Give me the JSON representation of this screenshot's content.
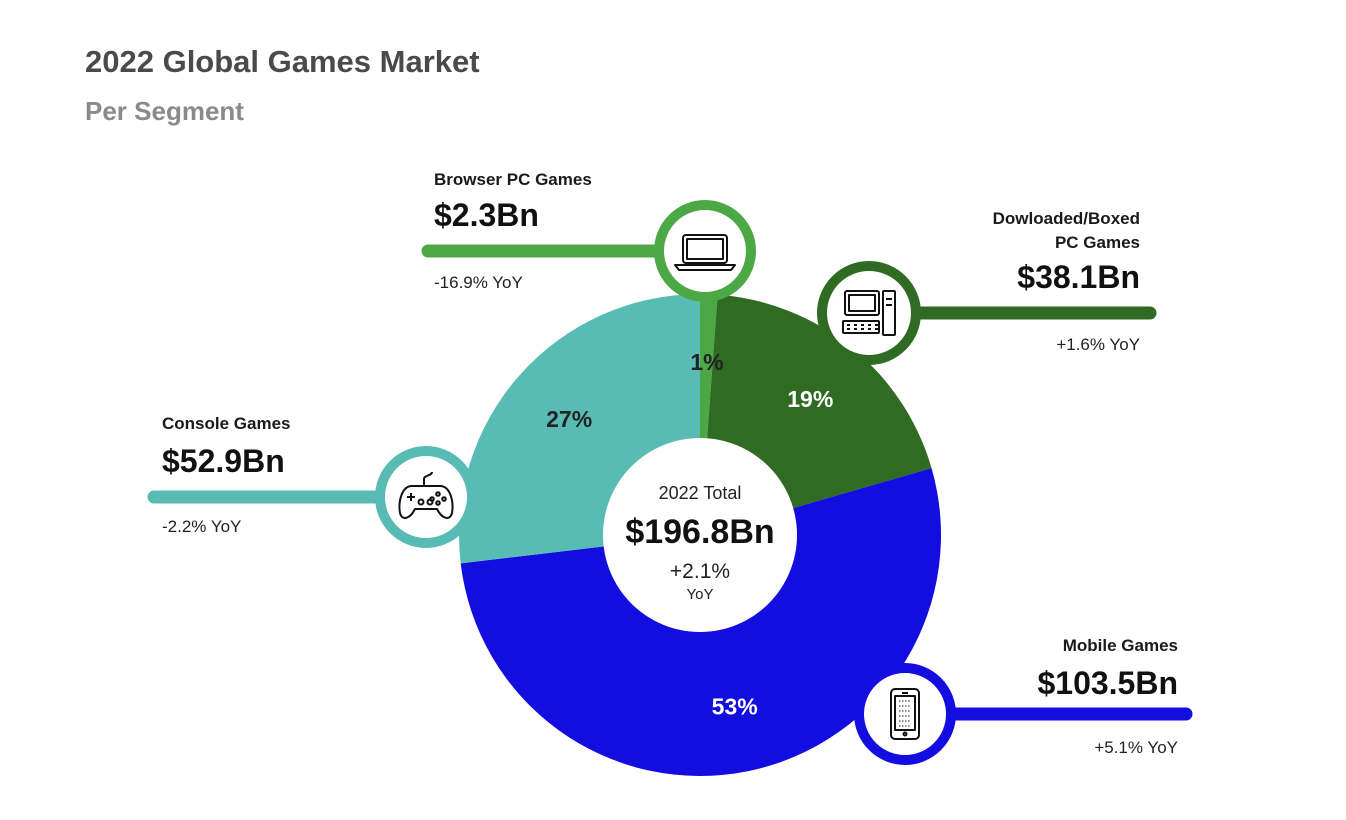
{
  "title": "2022 Global Games Market",
  "subtitle": "Per Segment",
  "center": {
    "label": "2022 Total",
    "value": "$196.8Bn",
    "yoy": "+2.1%",
    "yoy_unit": "YoY"
  },
  "chart_data": {
    "type": "pie",
    "title": "2022 Global Games Market",
    "subtitle": "Per Segment",
    "slices": [
      {
        "key": "browser",
        "title_lines": [
          "Browser PC Games"
        ],
        "value": 2.3,
        "value_label": "$2.3Bn",
        "pct": "1%",
        "yoy": "-16.9% YoY",
        "color": "#4ba845",
        "icon": "laptop-icon"
      },
      {
        "key": "downloaded",
        "title_lines": [
          "Dowloaded/Boxed",
          "PC Games"
        ],
        "value": 38.1,
        "value_label": "$38.1Bn",
        "pct": "19%",
        "yoy": "+1.6% YoY",
        "color": "#2f6b22",
        "icon": "desktop-computer-icon"
      },
      {
        "key": "mobile",
        "title_lines": [
          "Mobile Games"
        ],
        "value": 103.5,
        "value_label": "$103.5Bn",
        "pct": "53%",
        "yoy": "+5.1% YoY",
        "color": "#130ddf",
        "icon": "smartphone-icon"
      },
      {
        "key": "console",
        "title_lines": [
          "Console Games"
        ],
        "value": 52.9,
        "value_label": "$52.9Bn",
        "pct": "27%",
        "yoy": "-2.2% YoY",
        "color": "#58bcb5",
        "icon": "gamepad-icon"
      }
    ]
  }
}
